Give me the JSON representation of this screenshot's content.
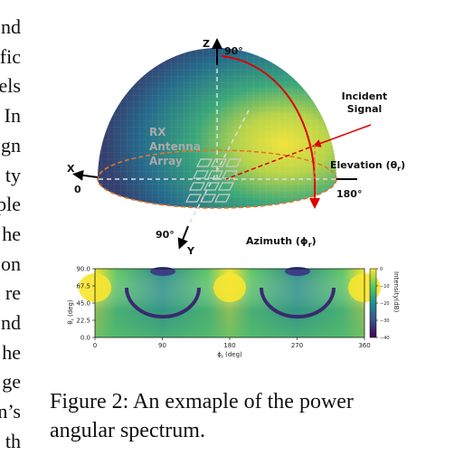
{
  "left_column_fragments": [
    "nd",
    "fic",
    "els",
    "In",
    "gn",
    "ty",
    "ple",
    "he",
    "on",
    "re",
    "nd",
    "he",
    "ge",
    "n’s",
    "th"
  ],
  "figure": {
    "hemisphere": {
      "z_axis": "Z",
      "z_angle": "90°",
      "incident_signal": [
        "Incident",
        "Signal"
      ],
      "rx_array": [
        "RX",
        "Antenna",
        "Array"
      ],
      "x_axis": "X",
      "x_angle": "0",
      "elevation": {
        "text": "Elevation (θ",
        "sub": "r",
        "close": ")"
      },
      "elevation_angle": "180°",
      "y_angle": "90°",
      "y_axis": "Y",
      "azimuth": {
        "text": "Azimuth (ϕ",
        "sub": "r",
        "close": ")"
      }
    },
    "heatmap": {
      "y_label": {
        "text": "θ",
        "sub": "r",
        "rest": " (deg)"
      },
      "x_label": {
        "text": "ϕ",
        "sub": "r",
        "rest": " (deg)"
      },
      "y_ticks": [
        "90.0",
        "67.5",
        "45.0",
        "22.5",
        "0.0"
      ],
      "x_ticks": [
        "0",
        "90",
        "180",
        "270",
        "360"
      ],
      "colorbar_label": "Intensity(dB)",
      "colorbar_ticks": [
        "0",
        "−10",
        "−20",
        "−30",
        "−40"
      ]
    }
  },
  "caption": [
    "Figure 2: An exmaple of the power",
    "angular spectrum."
  ]
}
